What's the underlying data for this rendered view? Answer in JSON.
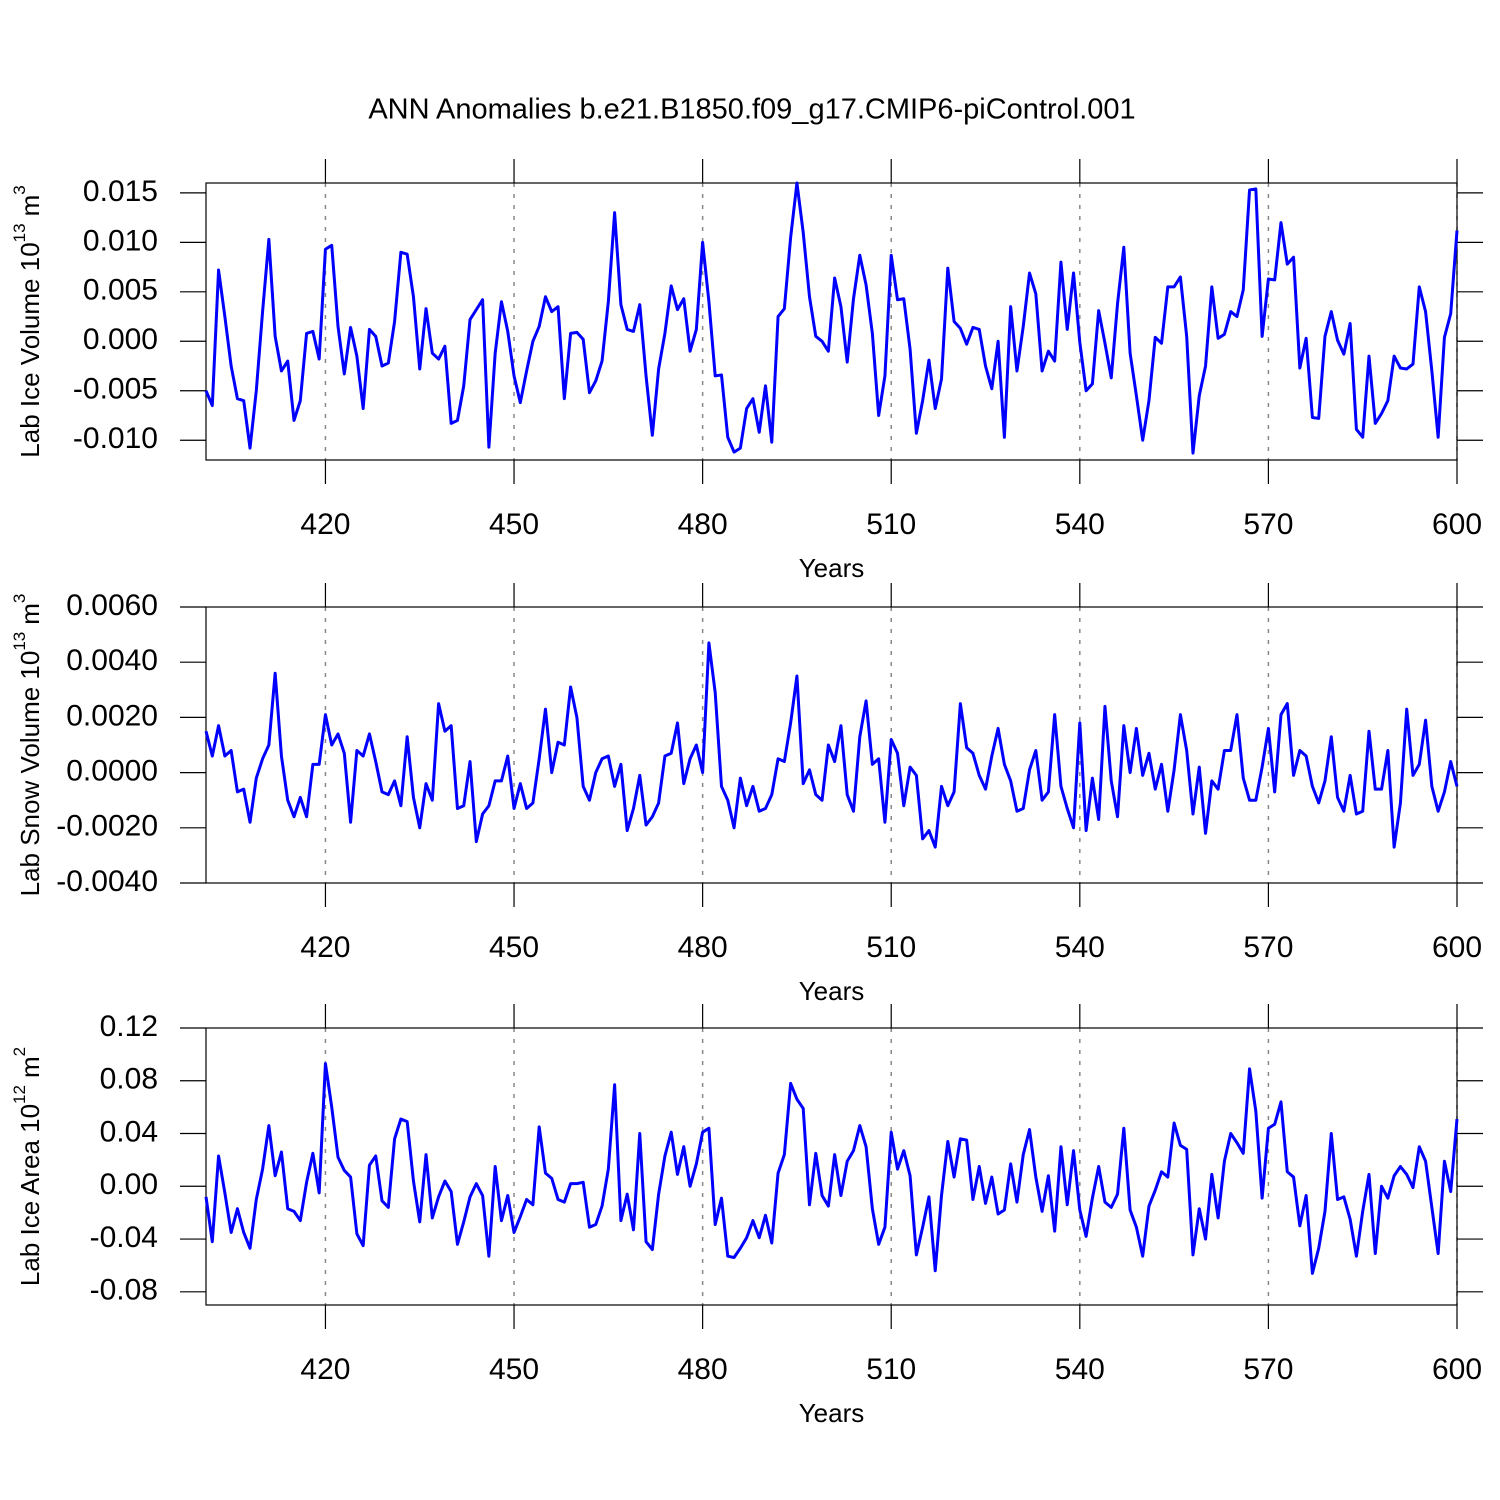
{
  "chart_data": [
    {
      "type": "line",
      "title": "ANN Anomalies b.e21.B1850.f09_g17.CMIP6-piControl.001",
      "ylabel": {
        "text": "Lab Ice Volume 10",
        "exponent": "13",
        "unit": "m",
        "unit_power": "3"
      },
      "xlabel": "Years",
      "color": "#0000ff",
      "xgrid": true,
      "xlim": [
        401,
        600
      ],
      "xticks": [
        420,
        450,
        480,
        510,
        540,
        570,
        600
      ],
      "ylim": [
        -0.012,
        0.016
      ],
      "yticks": [
        {
          "value": -0.01,
          "label": "-0.010"
        },
        -0.005,
        {
          "value": 0,
          "label": "0.000"
        },
        0.005,
        {
          "value": 0.01,
          "label": "0.010"
        },
        0.015
      ],
      "x": [
        401,
        402,
        403,
        404,
        405,
        406,
        407,
        408,
        409,
        410,
        411,
        412,
        413,
        414,
        415,
        416,
        417,
        418,
        419,
        420,
        421,
        422,
        423,
        424,
        425,
        426,
        427,
        428,
        429,
        430,
        431,
        432,
        433,
        434,
        435,
        436,
        437,
        438,
        439,
        440,
        441,
        442,
        443,
        444,
        445,
        446,
        447,
        448,
        449,
        450,
        451,
        452,
        453,
        454,
        455,
        456,
        457,
        458,
        459,
        460,
        461,
        462,
        463,
        464,
        465,
        466,
        467,
        468,
        469,
        470,
        471,
        472,
        473,
        474,
        475,
        476,
        477,
        478,
        479,
        480,
        481,
        482,
        483,
        484,
        485,
        486,
        487,
        488,
        489,
        490,
        491,
        492,
        493,
        494,
        495,
        496,
        497,
        498,
        499,
        500,
        501,
        502,
        503,
        504,
        505,
        506,
        507,
        508,
        509,
        510,
        511,
        512,
        513,
        514,
        515,
        516,
        517,
        518,
        519,
        520,
        521,
        522,
        523,
        524,
        525,
        526,
        527,
        528,
        529,
        530,
        531,
        532,
        533,
        534,
        535,
        536,
        537,
        538,
        539,
        540,
        541,
        542,
        543,
        544,
        545,
        546,
        547,
        548,
        549,
        550,
        551,
        552,
        553,
        554,
        555,
        556,
        557,
        558,
        559,
        560,
        561,
        562,
        563,
        564,
        565,
        566,
        567,
        568,
        569,
        570,
        571,
        572,
        573,
        574,
        575,
        576,
        577,
        578,
        579,
        580,
        581,
        582,
        583,
        584,
        585,
        586,
        587,
        588,
        589,
        590,
        591,
        592,
        593,
        594,
        595,
        596,
        597,
        598,
        599,
        600
      ],
      "values": [
        -0.005,
        -0.0065,
        0.0072,
        0.0025,
        -0.0025,
        -0.0058,
        -0.006,
        -0.0108,
        -0.005,
        0.003,
        0.0103,
        0.0005,
        -0.003,
        -0.002,
        -0.008,
        -0.006,
        0.0008,
        0.001,
        -0.0018,
        0.0093,
        0.0097,
        0.0015,
        -0.0033,
        0.0014,
        -0.0015,
        -0.0068,
        0.0012,
        0.0005,
        -0.0025,
        -0.0022,
        0.002,
        0.009,
        0.0088,
        0.0045,
        -0.0028,
        0.0033,
        -0.0012,
        -0.0018,
        -0.0005,
        -0.0083,
        -0.008,
        -0.0045,
        0.0022,
        0.0032,
        0.0042,
        -0.0107,
        -0.0012,
        0.004,
        0.001,
        -0.0035,
        -0.0062,
        -0.003,
        0.0,
        0.0015,
        0.0045,
        0.003,
        0.0035,
        -0.0058,
        0.0008,
        0.0009,
        0.0002,
        -0.0052,
        -0.004,
        -0.002,
        0.004,
        0.013,
        0.0037,
        0.0012,
        0.001,
        0.0037,
        -0.0035,
        -0.0095,
        -0.0028,
        0.0008,
        0.0056,
        0.0032,
        0.0043,
        -0.001,
        0.0012,
        0.01,
        0.004,
        -0.0035,
        -0.0034,
        -0.0097,
        -0.0112,
        -0.0108,
        -0.0068,
        -0.0058,
        -0.0092,
        -0.0045,
        -0.0102,
        0.0025,
        0.0033,
        0.0105,
        0.016,
        0.011,
        0.0045,
        0.0005,
        0.0,
        -0.001,
        0.0064,
        0.0035,
        -0.0021,
        0.0043,
        0.0087,
        0.0057,
        0.0008,
        -0.0075,
        -0.0035,
        0.0087,
        0.0042,
        0.0043,
        -0.0008,
        -0.0093,
        -0.006,
        -0.0019,
        -0.0068,
        -0.0038,
        0.0074,
        0.002,
        0.0013,
        -0.0003,
        0.0014,
        0.0012,
        -0.0025,
        -0.0048,
        0.0,
        -0.0097,
        0.0035,
        -0.003,
        0.0015,
        0.0069,
        0.0048,
        -0.003,
        -0.001,
        -0.002,
        0.008,
        0.0012,
        0.0069,
        -0.0001,
        -0.005,
        -0.0043,
        0.0031,
        -0.0002,
        -0.0037,
        0.0038,
        0.0095,
        -0.0012,
        -0.0055,
        -0.01,
        -0.006,
        0.0004,
        -0.0002,
        0.0055,
        0.0055,
        0.0065,
        0.0005,
        -0.0113,
        -0.0055,
        -0.0025,
        0.0055,
        0.0003,
        0.0007,
        0.003,
        0.0025,
        0.0052,
        0.0153,
        0.0154,
        0.0005,
        0.0063,
        0.0062,
        0.012,
        0.0078,
        0.0085,
        -0.0027,
        0.0003,
        -0.0077,
        -0.0078,
        0.0005,
        0.003,
        0.0001,
        -0.0013,
        0.0018,
        -0.0089,
        -0.0097,
        -0.0015,
        -0.0083,
        -0.0073,
        -0.006,
        -0.0015,
        -0.0027,
        -0.0028,
        -0.0023,
        0.0055,
        0.003,
        -0.003,
        -0.0097,
        0.0004,
        0.0028,
        0.0112
      ]
    },
    {
      "type": "line",
      "ylabel": {
        "text": "Lab Snow Volume 10",
        "exponent": "13",
        "unit": "m",
        "unit_power": "3"
      },
      "xlabel": "Years",
      "color": "#0000ff",
      "xgrid": true,
      "xlim": [
        401,
        600
      ],
      "xticks": [
        420,
        450,
        480,
        510,
        540,
        570,
        600
      ],
      "ylim": [
        -0.004,
        0.006
      ],
      "yticks": [
        {
          "value": -0.004,
          "label": "-0.0040"
        },
        {
          "value": -0.002,
          "label": "-0.0020"
        },
        {
          "value": 0,
          "label": "0.0000"
        },
        {
          "value": 0.002,
          "label": "0.0020"
        },
        {
          "value": 0.004,
          "label": "0.0040"
        },
        {
          "value": 0.006,
          "label": "0.0060"
        }
      ],
      "x": [
        401,
        402,
        403,
        404,
        405,
        406,
        407,
        408,
        409,
        410,
        411,
        412,
        413,
        414,
        415,
        416,
        417,
        418,
        419,
        420,
        421,
        422,
        423,
        424,
        425,
        426,
        427,
        428,
        429,
        430,
        431,
        432,
        433,
        434,
        435,
        436,
        437,
        438,
        439,
        440,
        441,
        442,
        443,
        444,
        445,
        446,
        447,
        448,
        449,
        450,
        451,
        452,
        453,
        454,
        455,
        456,
        457,
        458,
        459,
        460,
        461,
        462,
        463,
        464,
        465,
        466,
        467,
        468,
        469,
        470,
        471,
        472,
        473,
        474,
        475,
        476,
        477,
        478,
        479,
        480,
        481,
        482,
        483,
        484,
        485,
        486,
        487,
        488,
        489,
        490,
        491,
        492,
        493,
        494,
        495,
        496,
        497,
        498,
        499,
        500,
        501,
        502,
        503,
        504,
        505,
        506,
        507,
        508,
        509,
        510,
        511,
        512,
        513,
        514,
        515,
        516,
        517,
        518,
        519,
        520,
        521,
        522,
        523,
        524,
        525,
        526,
        527,
        528,
        529,
        530,
        531,
        532,
        533,
        534,
        535,
        536,
        537,
        538,
        539,
        540,
        541,
        542,
        543,
        544,
        545,
        546,
        547,
        548,
        549,
        550,
        551,
        552,
        553,
        554,
        555,
        556,
        557,
        558,
        559,
        560,
        561,
        562,
        563,
        564,
        565,
        566,
        567,
        568,
        569,
        570,
        571,
        572,
        573,
        574,
        575,
        576,
        577,
        578,
        579,
        580,
        581,
        582,
        583,
        584,
        585,
        586,
        587,
        588,
        589,
        590,
        591,
        592,
        593,
        594,
        595,
        596,
        597,
        598,
        599,
        600
      ],
      "values": [
        0.0015,
        0.0006,
        0.0017,
        0.0006,
        0.0008,
        -0.0007,
        -0.0006,
        -0.0018,
        -0.0002,
        0.0005,
        0.001,
        0.0036,
        0.0006,
        -0.001,
        -0.0016,
        -0.0009,
        -0.0016,
        0.0003,
        0.0003,
        0.0021,
        0.001,
        0.0014,
        0.0007,
        -0.0018,
        0.0008,
        0.0006,
        0.0014,
        0.0004,
        -0.0007,
        -0.0008,
        -0.0003,
        -0.0012,
        0.0013,
        -0.0009,
        -0.002,
        -0.0004,
        -0.001,
        0.0025,
        0.0015,
        0.0017,
        -0.0013,
        -0.0012,
        0.0004,
        -0.0025,
        -0.0015,
        -0.0012,
        -0.0003,
        -0.0003,
        0.0006,
        -0.0013,
        -0.0004,
        -0.0013,
        -0.0011,
        0.0005,
        0.0023,
        0.0,
        0.0011,
        0.001,
        0.0031,
        0.002,
        -0.0005,
        -0.001,
        0.0,
        0.0005,
        0.0006,
        -0.0005,
        0.0003,
        -0.0021,
        -0.0013,
        -0.0001,
        -0.0019,
        -0.0016,
        -0.0011,
        0.0006,
        0.0007,
        0.0018,
        -0.0004,
        0.0005,
        0.001,
        0.0,
        0.0047,
        0.0029,
        -0.0005,
        -0.001,
        -0.002,
        -0.0002,
        -0.0012,
        -0.0005,
        -0.0014,
        -0.0013,
        -0.0008,
        0.0005,
        0.0004,
        0.0018,
        0.0035,
        -0.0004,
        0.0001,
        -0.0008,
        -0.001,
        0.001,
        0.0004,
        0.0017,
        -0.0008,
        -0.0014,
        0.0013,
        0.0026,
        0.0003,
        0.0005,
        -0.0018,
        0.0012,
        0.0007,
        -0.0012,
        0.0002,
        -0.0001,
        -0.0024,
        -0.0021,
        -0.0027,
        -0.0005,
        -0.0012,
        -0.0007,
        0.0025,
        0.0009,
        0.0007,
        -0.0001,
        -0.0006,
        0.0006,
        0.0016,
        0.0003,
        -0.0003,
        -0.0014,
        -0.0013,
        0.0001,
        0.0008,
        -0.001,
        -0.0007,
        0.0021,
        -0.0005,
        -0.0013,
        -0.002,
        0.0018,
        -0.0021,
        -0.0002,
        -0.0017,
        0.0024,
        -0.0003,
        -0.0016,
        0.0017,
        0.0,
        0.0016,
        -0.0001,
        0.0007,
        -0.0006,
        0.0003,
        -0.0014,
        0.0001,
        0.0021,
        0.0008,
        -0.0015,
        0.0002,
        -0.0022,
        -0.0003,
        -0.0006,
        0.0008,
        0.0008,
        0.0021,
        -0.0002,
        -0.001,
        -0.001,
        0.0002,
        0.0016,
        -0.0007,
        0.0021,
        0.0025,
        -0.0001,
        0.0008,
        0.0006,
        -0.0005,
        -0.0011,
        -0.0003,
        0.0013,
        -0.0009,
        -0.0014,
        -0.0001,
        -0.0015,
        -0.0014,
        0.0015,
        -0.0006,
        -0.0006,
        0.0008,
        -0.0027,
        -0.0011,
        0.0023,
        -0.0001,
        0.0003,
        0.0019,
        -0.0005,
        -0.0014,
        -0.0007,
        0.0004,
        -0.0005
      ]
    },
    {
      "type": "line",
      "ylabel": {
        "text": "Lab Ice Area 10",
        "exponent": "12",
        "unit": "m",
        "unit_power": "2"
      },
      "xlabel": "Years",
      "color": "#0000ff",
      "xgrid": true,
      "xlim": [
        401,
        600
      ],
      "xticks": [
        420,
        450,
        480,
        510,
        540,
        570,
        600
      ],
      "ylim": [
        -0.09,
        0.12
      ],
      "yticks": [
        -0.08,
        -0.04,
        {
          "value": 0,
          "label": "0.00"
        },
        0.04,
        0.08,
        0.12
      ],
      "x": [
        401,
        402,
        403,
        404,
        405,
        406,
        407,
        408,
        409,
        410,
        411,
        412,
        413,
        414,
        415,
        416,
        417,
        418,
        419,
        420,
        421,
        422,
        423,
        424,
        425,
        426,
        427,
        428,
        429,
        430,
        431,
        432,
        433,
        434,
        435,
        436,
        437,
        438,
        439,
        440,
        441,
        442,
        443,
        444,
        445,
        446,
        447,
        448,
        449,
        450,
        451,
        452,
        453,
        454,
        455,
        456,
        457,
        458,
        459,
        460,
        461,
        462,
        463,
        464,
        465,
        466,
        467,
        468,
        469,
        470,
        471,
        472,
        473,
        474,
        475,
        476,
        477,
        478,
        479,
        480,
        481,
        482,
        483,
        484,
        485,
        486,
        487,
        488,
        489,
        490,
        491,
        492,
        493,
        494,
        495,
        496,
        497,
        498,
        499,
        500,
        501,
        502,
        503,
        504,
        505,
        506,
        507,
        508,
        509,
        510,
        511,
        512,
        513,
        514,
        515,
        516,
        517,
        518,
        519,
        520,
        521,
        522,
        523,
        524,
        525,
        526,
        527,
        528,
        529,
        530,
        531,
        532,
        533,
        534,
        535,
        536,
        537,
        538,
        539,
        540,
        541,
        542,
        543,
        544,
        545,
        546,
        547,
        548,
        549,
        550,
        551,
        552,
        553,
        554,
        555,
        556,
        557,
        558,
        559,
        560,
        561,
        562,
        563,
        564,
        565,
        566,
        567,
        568,
        569,
        570,
        571,
        572,
        573,
        574,
        575,
        576,
        577,
        578,
        579,
        580,
        581,
        582,
        583,
        584,
        585,
        586,
        587,
        588,
        589,
        590,
        591,
        592,
        593,
        594,
        595,
        596,
        597,
        598,
        599,
        600
      ],
      "values": [
        -0.008,
        -0.042,
        0.023,
        -0.005,
        -0.035,
        -0.017,
        -0.035,
        -0.047,
        -0.01,
        0.013,
        0.046,
        0.008,
        0.026,
        -0.017,
        -0.019,
        -0.026,
        0.003,
        0.025,
        -0.005,
        0.093,
        0.06,
        0.022,
        0.012,
        0.007,
        -0.036,
        -0.045,
        0.016,
        0.023,
        -0.011,
        -0.016,
        0.036,
        0.051,
        0.049,
        0.004,
        -0.027,
        0.024,
        -0.024,
        -0.008,
        0.004,
        -0.004,
        -0.044,
        -0.027,
        -0.008,
        0.002,
        -0.007,
        -0.053,
        0.015,
        -0.026,
        -0.007,
        -0.035,
        -0.023,
        -0.01,
        -0.014,
        0.045,
        0.01,
        0.006,
        -0.01,
        -0.012,
        0.002,
        0.002,
        0.003,
        -0.031,
        -0.029,
        -0.015,
        0.013,
        0.077,
        -0.026,
        -0.006,
        -0.033,
        0.04,
        -0.042,
        -0.048,
        -0.006,
        0.023,
        0.041,
        0.009,
        0.03,
        0.0,
        0.017,
        0.041,
        0.044,
        -0.029,
        -0.009,
        -0.053,
        -0.054,
        -0.047,
        -0.039,
        -0.026,
        -0.039,
        -0.022,
        -0.043,
        0.01,
        0.024,
        0.078,
        0.066,
        0.059,
        -0.014,
        0.025,
        -0.007,
        -0.015,
        0.024,
        -0.007,
        0.019,
        0.027,
        0.046,
        0.03,
        -0.017,
        -0.044,
        -0.031,
        0.041,
        0.013,
        0.027,
        0.008,
        -0.052,
        -0.031,
        -0.008,
        -0.064,
        -0.007,
        0.034,
        0.007,
        0.036,
        0.035,
        -0.01,
        0.015,
        -0.013,
        0.007,
        -0.021,
        -0.018,
        0.017,
        -0.012,
        0.024,
        0.043,
        0.007,
        -0.019,
        0.008,
        -0.034,
        0.03,
        -0.014,
        0.027,
        -0.018,
        -0.038,
        -0.009,
        0.015,
        -0.012,
        -0.016,
        -0.006,
        0.044,
        -0.018,
        -0.031,
        -0.053,
        -0.015,
        -0.003,
        0.011,
        0.007,
        0.048,
        0.031,
        0.028,
        -0.052,
        -0.017,
        -0.04,
        0.009,
        -0.024,
        0.019,
        0.04,
        0.033,
        0.025,
        0.089,
        0.057,
        -0.009,
        0.044,
        0.047,
        0.064,
        0.011,
        0.007,
        -0.03,
        -0.007,
        -0.066,
        -0.047,
        -0.019,
        0.04,
        -0.01,
        -0.008,
        -0.025,
        -0.053,
        -0.019,
        0.009,
        -0.051,
        0.0,
        -0.009,
        0.008,
        0.015,
        0.009,
        -0.001,
        0.03,
        0.019,
        -0.016,
        -0.051,
        0.019,
        -0.004,
        0.051
      ]
    }
  ]
}
